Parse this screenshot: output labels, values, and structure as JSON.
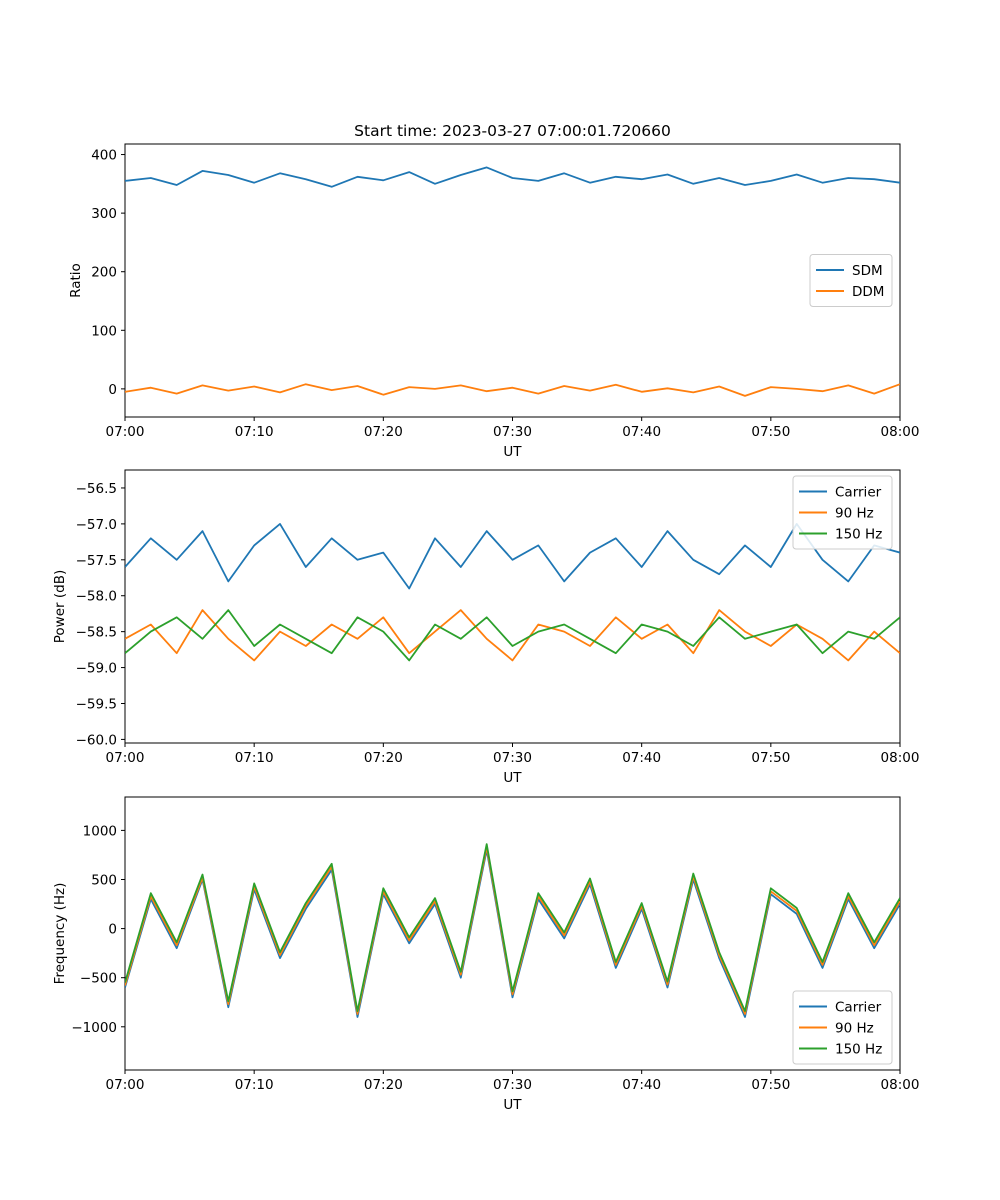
{
  "figure": {
    "title": "Start time: 2023-03-27 07:00:01.720660"
  },
  "chart_data": [
    {
      "type": "line",
      "xlabel": "UT",
      "ylabel": "Ratio",
      "xlim": [
        "07:00",
        "08:00"
      ],
      "xticks": [
        "07:00",
        "07:10",
        "07:20",
        "07:30",
        "07:40",
        "07:50",
        "08:00"
      ],
      "ylim": [
        -48,
        418
      ],
      "yticks": [
        0,
        100,
        200,
        300,
        400
      ],
      "grid": false,
      "legend_position": "center-right",
      "x_minutes": [
        0,
        2,
        4,
        6,
        8,
        10,
        12,
        14,
        16,
        18,
        20,
        22,
        24,
        26,
        28,
        30,
        32,
        34,
        36,
        38,
        40,
        42,
        44,
        46,
        48,
        50,
        52,
        54,
        56,
        58,
        60
      ],
      "series": [
        {
          "name": "SDM",
          "color": "#1f77b4",
          "values": [
            355,
            360,
            348,
            372,
            365,
            352,
            368,
            358,
            345,
            362,
            356,
            370,
            350,
            365,
            378,
            360,
            355,
            368,
            352,
            362,
            358,
            366,
            350,
            360,
            348,
            355,
            366,
            352,
            360,
            358,
            352
          ]
        },
        {
          "name": "DDM",
          "color": "#ff7f0e",
          "values": [
            -5,
            2,
            -8,
            6,
            -3,
            4,
            -6,
            8,
            -2,
            5,
            -10,
            3,
            0,
            6,
            -4,
            2,
            -8,
            5,
            -3,
            7,
            -5,
            1,
            -6,
            4,
            -12,
            3,
            0,
            -4,
            6,
            -8,
            8
          ]
        }
      ]
    },
    {
      "type": "line",
      "xlabel": "UT",
      "ylabel": "Power (dB)",
      "xlim": [
        "07:00",
        "08:00"
      ],
      "xticks": [
        "07:00",
        "07:10",
        "07:20",
        "07:30",
        "07:40",
        "07:50",
        "08:00"
      ],
      "ylim": [
        -60.05,
        -56.25
      ],
      "yticks": [
        -60.0,
        -59.5,
        -59.0,
        -58.5,
        -58.0,
        -57.5,
        -57.0,
        -56.5
      ],
      "ytick_labels": [
        "−60.0",
        "−59.5",
        "−59.0",
        "−58.5",
        "−58.0",
        "−57.5",
        "−57.0",
        "−56.5"
      ],
      "grid": false,
      "legend_position": "top-right",
      "x_minutes": [
        0,
        2,
        4,
        6,
        8,
        10,
        12,
        14,
        16,
        18,
        20,
        22,
        24,
        26,
        28,
        30,
        32,
        34,
        36,
        38,
        40,
        42,
        44,
        46,
        48,
        50,
        52,
        54,
        56,
        58,
        60
      ],
      "series": [
        {
          "name": "Carrier",
          "color": "#1f77b4",
          "values": [
            -57.6,
            -57.2,
            -57.5,
            -57.1,
            -57.8,
            -57.3,
            -57.0,
            -57.6,
            -57.2,
            -57.5,
            -57.4,
            -57.9,
            -57.2,
            -57.6,
            -57.1,
            -57.5,
            -57.3,
            -57.8,
            -57.4,
            -57.2,
            -57.6,
            -57.1,
            -57.5,
            -57.7,
            -57.3,
            -57.6,
            -57.0,
            -57.5,
            -57.8,
            -57.3,
            -57.4
          ]
        },
        {
          "name": "90 Hz",
          "color": "#ff7f0e",
          "values": [
            -58.6,
            -58.4,
            -58.8,
            -58.2,
            -58.6,
            -58.9,
            -58.5,
            -58.7,
            -58.4,
            -58.6,
            -58.3,
            -58.8,
            -58.5,
            -58.2,
            -58.6,
            -58.9,
            -58.4,
            -58.5,
            -58.7,
            -58.3,
            -58.6,
            -58.4,
            -58.8,
            -58.2,
            -58.5,
            -58.7,
            -58.4,
            -58.6,
            -58.9,
            -58.5,
            -58.8
          ]
        },
        {
          "name": "150 Hz",
          "color": "#2ca02c",
          "values": [
            -58.8,
            -58.5,
            -58.3,
            -58.6,
            -58.2,
            -58.7,
            -58.4,
            -58.6,
            -58.8,
            -58.3,
            -58.5,
            -58.9,
            -58.4,
            -58.6,
            -58.3,
            -58.7,
            -58.5,
            -58.4,
            -58.6,
            -58.8,
            -58.4,
            -58.5,
            -58.7,
            -58.3,
            -58.6,
            -58.5,
            -58.4,
            -58.8,
            -58.5,
            -58.6,
            -58.3
          ]
        }
      ]
    },
    {
      "type": "line",
      "xlabel": "UT",
      "ylabel": "Frequency (Hz)",
      "xlim": [
        "07:00",
        "08:00"
      ],
      "xticks": [
        "07:00",
        "07:10",
        "07:20",
        "07:30",
        "07:40",
        "07:50",
        "08:00"
      ],
      "ylim": [
        -1440,
        1340
      ],
      "yticks": [
        -1000,
        -500,
        0,
        500,
        1000
      ],
      "ytick_labels": [
        "−1000",
        "−500",
        "0",
        "500",
        "1000"
      ],
      "grid": false,
      "legend_position": "bottom-right",
      "x_minutes": [
        0,
        2,
        4,
        6,
        8,
        10,
        12,
        14,
        16,
        18,
        20,
        22,
        24,
        26,
        28,
        30,
        32,
        34,
        36,
        38,
        40,
        42,
        44,
        46,
        48,
        50,
        52,
        54,
        56,
        58,
        60
      ],
      "series": [
        {
          "name": "Carrier",
          "color": "#1f77b4",
          "values": [
            -600,
            300,
            -200,
            500,
            -800,
            400,
            -300,
            200,
            600,
            -900,
            350,
            -150,
            250,
            -500,
            800,
            -700,
            300,
            -100,
            450,
            -400,
            200,
            -600,
            500,
            -300,
            -900,
            350,
            150,
            -400,
            300,
            -200,
            250
          ]
        },
        {
          "name": "90 Hz",
          "color": "#ff7f0e",
          "values": [
            -580,
            330,
            -170,
            520,
            -770,
            430,
            -270,
            230,
            630,
            -870,
            380,
            -120,
            280,
            -470,
            830,
            -670,
            330,
            -70,
            480,
            -370,
            230,
            -570,
            530,
            -270,
            -870,
            380,
            180,
            -370,
            330,
            -170,
            280
          ]
        },
        {
          "name": "150 Hz",
          "color": "#2ca02c",
          "values": [
            -550,
            360,
            -140,
            550,
            -740,
            460,
            -240,
            260,
            660,
            -840,
            410,
            -90,
            310,
            -440,
            860,
            -640,
            360,
            -40,
            510,
            -340,
            260,
            -540,
            560,
            -240,
            -840,
            410,
            210,
            -340,
            360,
            -140,
            310
          ]
        }
      ]
    }
  ]
}
